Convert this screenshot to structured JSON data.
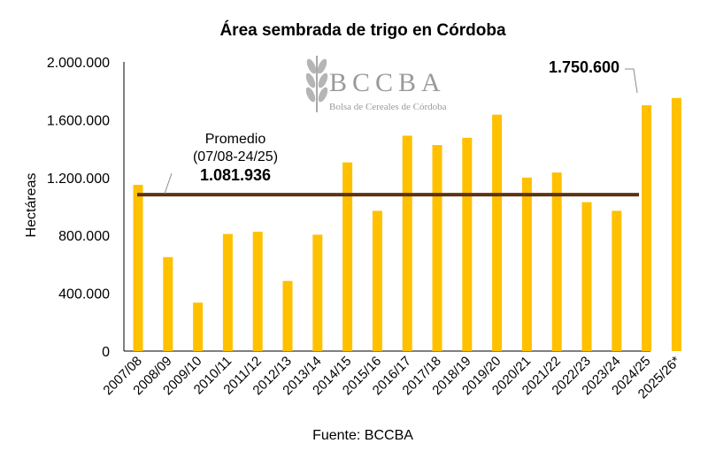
{
  "chart_data": {
    "type": "bar",
    "title": "Área sembrada de trigo en Córdoba",
    "ylabel": "Hectáreas",
    "xlabel": "",
    "source": "Fuente: BCCBA",
    "categories": [
      "2007/08",
      "2008/09",
      "2009/10",
      "2010/11",
      "2011/12",
      "2012/13",
      "2013/14",
      "2014/15",
      "2015/16",
      "2016/17",
      "2017/18",
      "2018/19",
      "2019/20",
      "2020/21",
      "2021/22",
      "2022/23",
      "2023/24",
      "2024/25",
      "2025/26*"
    ],
    "values": [
      1150000,
      650000,
      335000,
      810000,
      825000,
      485000,
      805000,
      1305000,
      970000,
      1490000,
      1425000,
      1475000,
      1635000,
      1200000,
      1235000,
      1030000,
      970000,
      1700000,
      1750600
    ],
    "ylim": [
      0,
      2000000
    ],
    "yticks": [
      0,
      400000,
      800000,
      1200000,
      1600000,
      2000000
    ],
    "ytick_labels": [
      "0",
      "400.000",
      "800.000",
      "1.200.000",
      "1.600.000",
      "2.000.000"
    ],
    "bar_color": "#FFC000",
    "average": {
      "value": 1081936,
      "label_line1": "Promedio",
      "label_line2": "(07/08-24/25)",
      "value_label": "1.081.936",
      "color": "#5C3310"
    },
    "highlight": {
      "value_label": "1.750.600"
    },
    "grid": false,
    "legend": "none"
  },
  "logo": {
    "name": "BCCBA",
    "subtitle": "Bolsa de Cereales de Córdoba",
    "icon": "wheat-icon"
  }
}
